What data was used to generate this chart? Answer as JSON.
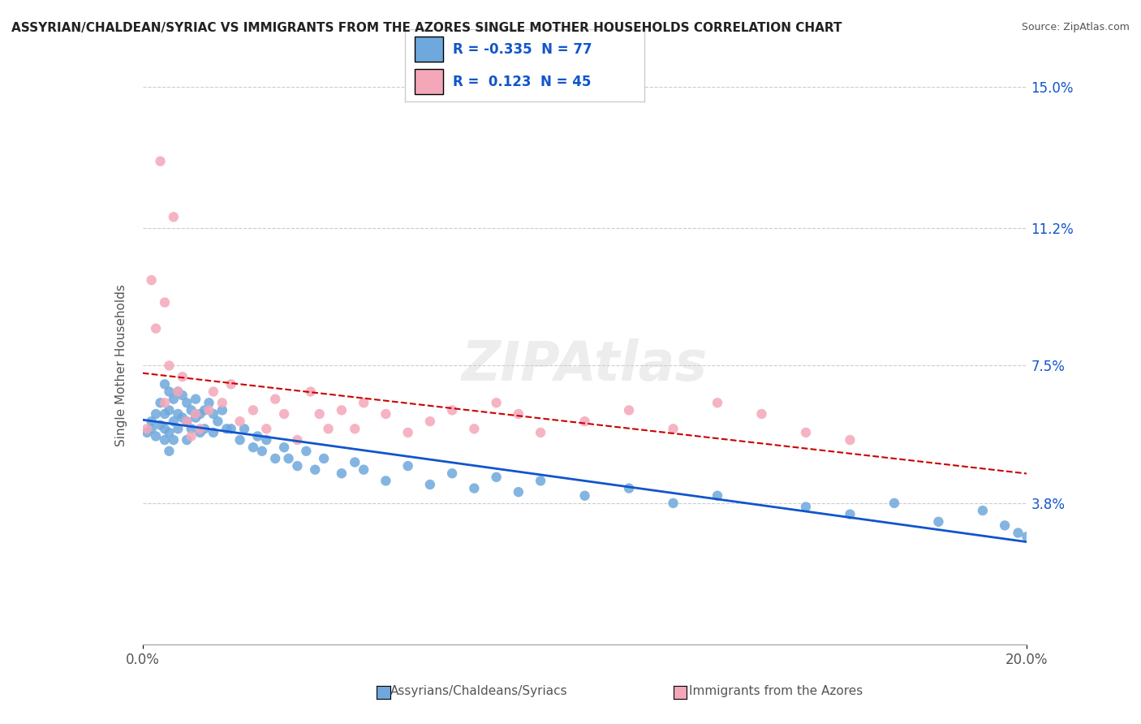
{
  "title": "ASSYRIAN/CHALDEAN/SYRIAC VS IMMIGRANTS FROM THE AZORES SINGLE MOTHER HOUSEHOLDS CORRELATION CHART",
  "source": "Source: ZipAtlas.com",
  "xlabel_blue": "Assyrians/Chaldeans/Syriacs",
  "xlabel_pink": "Immigrants from the Azores",
  "ylabel": "Single Mother Households",
  "xlim": [
    0.0,
    0.2
  ],
  "ylim": [
    0.0,
    0.15
  ],
  "yticks": [
    0.038,
    0.075,
    0.112,
    0.15
  ],
  "ytick_labels": [
    "3.8%",
    "7.5%",
    "11.2%",
    "15.0%"
  ],
  "xticks": [
    0.0,
    0.2
  ],
  "xtick_labels": [
    "0.0%",
    "20.0%"
  ],
  "blue_R": -0.335,
  "blue_N": 77,
  "pink_R": 0.123,
  "pink_N": 45,
  "blue_color": "#6fa8dc",
  "pink_color": "#f4a7b9",
  "trend_blue_color": "#1155cc",
  "trend_pink_color": "#cc0000",
  "blue_scatter_x": [
    0.001,
    0.002,
    0.002,
    0.003,
    0.003,
    0.004,
    0.004,
    0.005,
    0.005,
    0.005,
    0.005,
    0.006,
    0.006,
    0.006,
    0.006,
    0.007,
    0.007,
    0.007,
    0.008,
    0.008,
    0.008,
    0.009,
    0.009,
    0.01,
    0.01,
    0.01,
    0.011,
    0.011,
    0.012,
    0.012,
    0.013,
    0.013,
    0.014,
    0.014,
    0.015,
    0.016,
    0.016,
    0.017,
    0.018,
    0.019,
    0.02,
    0.022,
    0.023,
    0.025,
    0.026,
    0.027,
    0.028,
    0.03,
    0.032,
    0.033,
    0.035,
    0.037,
    0.039,
    0.041,
    0.045,
    0.048,
    0.05,
    0.055,
    0.06,
    0.065,
    0.07,
    0.075,
    0.08,
    0.085,
    0.09,
    0.1,
    0.11,
    0.12,
    0.13,
    0.15,
    0.16,
    0.17,
    0.18,
    0.19,
    0.195,
    0.198,
    0.2
  ],
  "blue_scatter_y": [
    0.057,
    0.06,
    0.058,
    0.062,
    0.056,
    0.065,
    0.059,
    0.07,
    0.062,
    0.058,
    0.055,
    0.068,
    0.063,
    0.057,
    0.052,
    0.066,
    0.06,
    0.055,
    0.068,
    0.062,
    0.058,
    0.067,
    0.061,
    0.065,
    0.06,
    0.055,
    0.063,
    0.058,
    0.066,
    0.061,
    0.062,
    0.057,
    0.063,
    0.058,
    0.065,
    0.062,
    0.057,
    0.06,
    0.063,
    0.058,
    0.058,
    0.055,
    0.058,
    0.053,
    0.056,
    0.052,
    0.055,
    0.05,
    0.053,
    0.05,
    0.048,
    0.052,
    0.047,
    0.05,
    0.046,
    0.049,
    0.047,
    0.044,
    0.048,
    0.043,
    0.046,
    0.042,
    0.045,
    0.041,
    0.044,
    0.04,
    0.042,
    0.038,
    0.04,
    0.037,
    0.035,
    0.038,
    0.033,
    0.036,
    0.032,
    0.03,
    0.029
  ],
  "pink_scatter_x": [
    0.001,
    0.002,
    0.003,
    0.004,
    0.005,
    0.005,
    0.006,
    0.007,
    0.008,
    0.009,
    0.01,
    0.011,
    0.012,
    0.013,
    0.015,
    0.016,
    0.018,
    0.02,
    0.022,
    0.025,
    0.028,
    0.03,
    0.032,
    0.035,
    0.038,
    0.04,
    0.042,
    0.045,
    0.048,
    0.05,
    0.055,
    0.06,
    0.065,
    0.07,
    0.075,
    0.08,
    0.085,
    0.09,
    0.1,
    0.11,
    0.12,
    0.13,
    0.14,
    0.15,
    0.16
  ],
  "pink_scatter_y": [
    0.058,
    0.098,
    0.085,
    0.13,
    0.092,
    0.065,
    0.075,
    0.115,
    0.068,
    0.072,
    0.06,
    0.056,
    0.062,
    0.058,
    0.063,
    0.068,
    0.065,
    0.07,
    0.06,
    0.063,
    0.058,
    0.066,
    0.062,
    0.055,
    0.068,
    0.062,
    0.058,
    0.063,
    0.058,
    0.065,
    0.062,
    0.057,
    0.06,
    0.063,
    0.058,
    0.065,
    0.062,
    0.057,
    0.06,
    0.063,
    0.058,
    0.065,
    0.062,
    0.057,
    0.055
  ],
  "watermark": "ZIPAtlas",
  "background_color": "#ffffff",
  "grid_color": "#cccccc"
}
